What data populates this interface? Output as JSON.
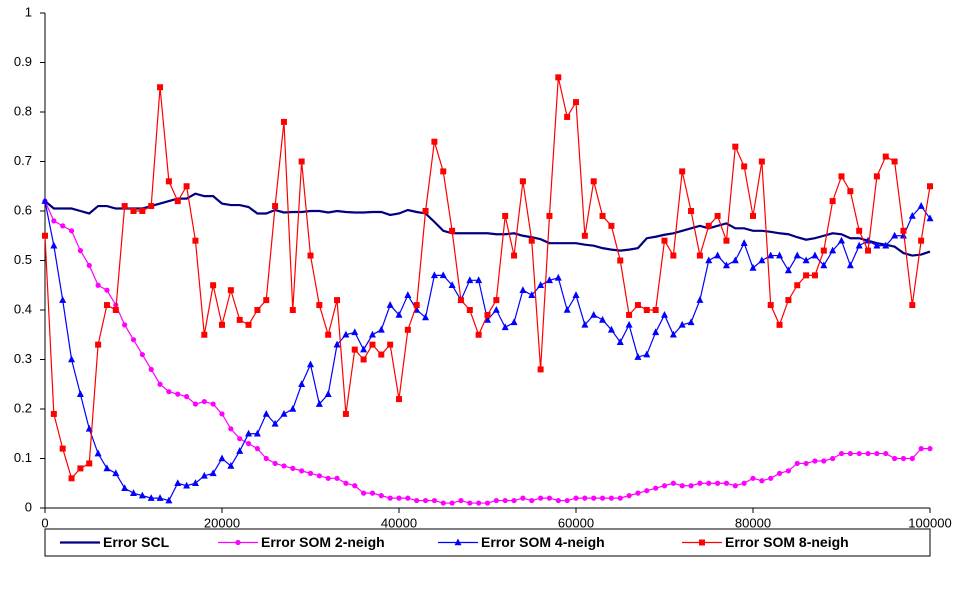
{
  "chart_data": {
    "type": "line",
    "x": [
      0,
      1000,
      2000,
      3000,
      4000,
      5000,
      6000,
      7000,
      8000,
      9000,
      10000,
      11000,
      12000,
      13000,
      14000,
      15000,
      16000,
      17000,
      18000,
      19000,
      20000,
      21000,
      22000,
      23000,
      24000,
      25000,
      26000,
      27000,
      28000,
      29000,
      30000,
      31000,
      32000,
      33000,
      34000,
      35000,
      36000,
      37000,
      38000,
      39000,
      40000,
      41000,
      42000,
      43000,
      44000,
      45000,
      46000,
      47000,
      48000,
      49000,
      50000,
      51000,
      52000,
      53000,
      54000,
      55000,
      56000,
      57000,
      58000,
      59000,
      60000,
      61000,
      62000,
      63000,
      64000,
      65000,
      66000,
      67000,
      68000,
      69000,
      70000,
      71000,
      72000,
      73000,
      74000,
      75000,
      76000,
      77000,
      78000,
      79000,
      80000,
      81000,
      82000,
      83000,
      84000,
      85000,
      86000,
      87000,
      88000,
      89000,
      90000,
      91000,
      92000,
      93000,
      94000,
      95000,
      96000,
      97000,
      98000,
      99000,
      100000
    ],
    "series": [
      {
        "name": "Error SCL",
        "color": "#000080",
        "marker": "none",
        "values": [
          0.62,
          0.605,
          0.605,
          0.605,
          0.6,
          0.595,
          0.61,
          0.61,
          0.605,
          0.605,
          0.605,
          0.605,
          0.61,
          0.615,
          0.62,
          0.625,
          0.625,
          0.635,
          0.63,
          0.63,
          0.615,
          0.612,
          0.612,
          0.608,
          0.595,
          0.595,
          0.602,
          0.597,
          0.598,
          0.598,
          0.6,
          0.6,
          0.597,
          0.6,
          0.598,
          0.597,
          0.597,
          0.598,
          0.598,
          0.592,
          0.595,
          0.602,
          0.598,
          0.595,
          0.578,
          0.56,
          0.555,
          0.555,
          0.555,
          0.555,
          0.555,
          0.553,
          0.553,
          0.555,
          0.55,
          0.547,
          0.543,
          0.535,
          0.535,
          0.535,
          0.535,
          0.532,
          0.53,
          0.525,
          0.522,
          0.52,
          0.522,
          0.525,
          0.545,
          0.548,
          0.552,
          0.555,
          0.56,
          0.565,
          0.57,
          0.565,
          0.57,
          0.575,
          0.565,
          0.565,
          0.56,
          0.56,
          0.558,
          0.555,
          0.553,
          0.547,
          0.542,
          0.545,
          0.55,
          0.555,
          0.553,
          0.545,
          0.545,
          0.54,
          0.535,
          0.532,
          0.528,
          0.515,
          0.51,
          0.512,
          0.518
        ]
      },
      {
        "name": "Error SOM 2-neigh",
        "color": "#ff00ff",
        "marker": "circle",
        "values": [
          0.62,
          0.58,
          0.57,
          0.56,
          0.52,
          0.49,
          0.45,
          0.44,
          0.41,
          0.37,
          0.34,
          0.31,
          0.28,
          0.25,
          0.235,
          0.23,
          0.225,
          0.21,
          0.215,
          0.21,
          0.19,
          0.16,
          0.14,
          0.13,
          0.12,
          0.1,
          0.09,
          0.085,
          0.08,
          0.075,
          0.07,
          0.065,
          0.06,
          0.06,
          0.05,
          0.045,
          0.03,
          0.03,
          0.025,
          0.02,
          0.02,
          0.02,
          0.015,
          0.015,
          0.015,
          0.01,
          0.01,
          0.015,
          0.01,
          0.01,
          0.01,
          0.015,
          0.015,
          0.015,
          0.02,
          0.015,
          0.02,
          0.02,
          0.015,
          0.015,
          0.02,
          0.02,
          0.02,
          0.02,
          0.02,
          0.02,
          0.025,
          0.03,
          0.035,
          0.04,
          0.045,
          0.05,
          0.045,
          0.045,
          0.05,
          0.05,
          0.05,
          0.05,
          0.045,
          0.05,
          0.06,
          0.055,
          0.06,
          0.07,
          0.075,
          0.09,
          0.09,
          0.095,
          0.095,
          0.1,
          0.11,
          0.11,
          0.11,
          0.11,
          0.11,
          0.11,
          0.1,
          0.1,
          0.1,
          0.12,
          0.12
        ]
      },
      {
        "name": "Error SOM 4-neigh",
        "color": "#0000ff",
        "marker": "triangle",
        "values": [
          0.62,
          0.53,
          0.42,
          0.3,
          0.23,
          0.16,
          0.11,
          0.08,
          0.07,
          0.04,
          0.03,
          0.025,
          0.02,
          0.02,
          0.015,
          0.05,
          0.045,
          0.05,
          0.065,
          0.07,
          0.1,
          0.085,
          0.115,
          0.15,
          0.15,
          0.19,
          0.17,
          0.19,
          0.2,
          0.25,
          0.29,
          0.21,
          0.23,
          0.33,
          0.35,
          0.355,
          0.32,
          0.35,
          0.36,
          0.41,
          0.39,
          0.43,
          0.4,
          0.385,
          0.47,
          0.47,
          0.45,
          0.42,
          0.46,
          0.46,
          0.38,
          0.4,
          0.365,
          0.375,
          0.44,
          0.43,
          0.45,
          0.46,
          0.465,
          0.4,
          0.43,
          0.37,
          0.39,
          0.38,
          0.36,
          0.335,
          0.37,
          0.305,
          0.31,
          0.355,
          0.39,
          0.35,
          0.37,
          0.375,
          0.42,
          0.5,
          0.51,
          0.49,
          0.5,
          0.535,
          0.485,
          0.5,
          0.51,
          0.51,
          0.48,
          0.51,
          0.5,
          0.51,
          0.49,
          0.52,
          0.54,
          0.49,
          0.53,
          0.54,
          0.53,
          0.53,
          0.55,
          0.55,
          0.59,
          0.61,
          0.585
        ]
      },
      {
        "name": "Error SOM 8-neigh",
        "color": "#ff0000",
        "marker": "square",
        "values": [
          0.55,
          0.19,
          0.12,
          0.06,
          0.08,
          0.09,
          0.33,
          0.41,
          0.4,
          0.61,
          0.6,
          0.6,
          0.61,
          0.85,
          0.66,
          0.62,
          0.65,
          0.54,
          0.35,
          0.45,
          0.37,
          0.44,
          0.38,
          0.37,
          0.4,
          0.42,
          0.61,
          0.78,
          0.4,
          0.7,
          0.51,
          0.41,
          0.35,
          0.42,
          0.19,
          0.32,
          0.3,
          0.33,
          0.31,
          0.33,
          0.22,
          0.36,
          0.41,
          0.6,
          0.74,
          0.68,
          0.56,
          0.42,
          0.4,
          0.35,
          0.39,
          0.42,
          0.59,
          0.51,
          0.66,
          0.54,
          0.28,
          0.59,
          0.87,
          0.79,
          0.82,
          0.55,
          0.66,
          0.59,
          0.57,
          0.5,
          0.39,
          0.41,
          0.4,
          0.4,
          0.54,
          0.51,
          0.68,
          0.6,
          0.51,
          0.57,
          0.59,
          0.54,
          0.73,
          0.69,
          0.59,
          0.7,
          0.41,
          0.37,
          0.42,
          0.45,
          0.47,
          0.47,
          0.52,
          0.62,
          0.67,
          0.64,
          0.56,
          0.52,
          0.67,
          0.71,
          0.7,
          0.56,
          0.41,
          0.54,
          0.65
        ]
      }
    ],
    "xlim": [
      0,
      100000
    ],
    "xticks": [
      0,
      20000,
      40000,
      60000,
      80000,
      100000
    ],
    "ylim": [
      0,
      1
    ],
    "yticks": [
      0,
      0.1,
      0.2,
      0.3,
      0.4,
      0.5,
      0.6,
      0.7,
      0.8,
      0.9,
      1
    ],
    "grid": false,
    "legend": "bottom"
  }
}
